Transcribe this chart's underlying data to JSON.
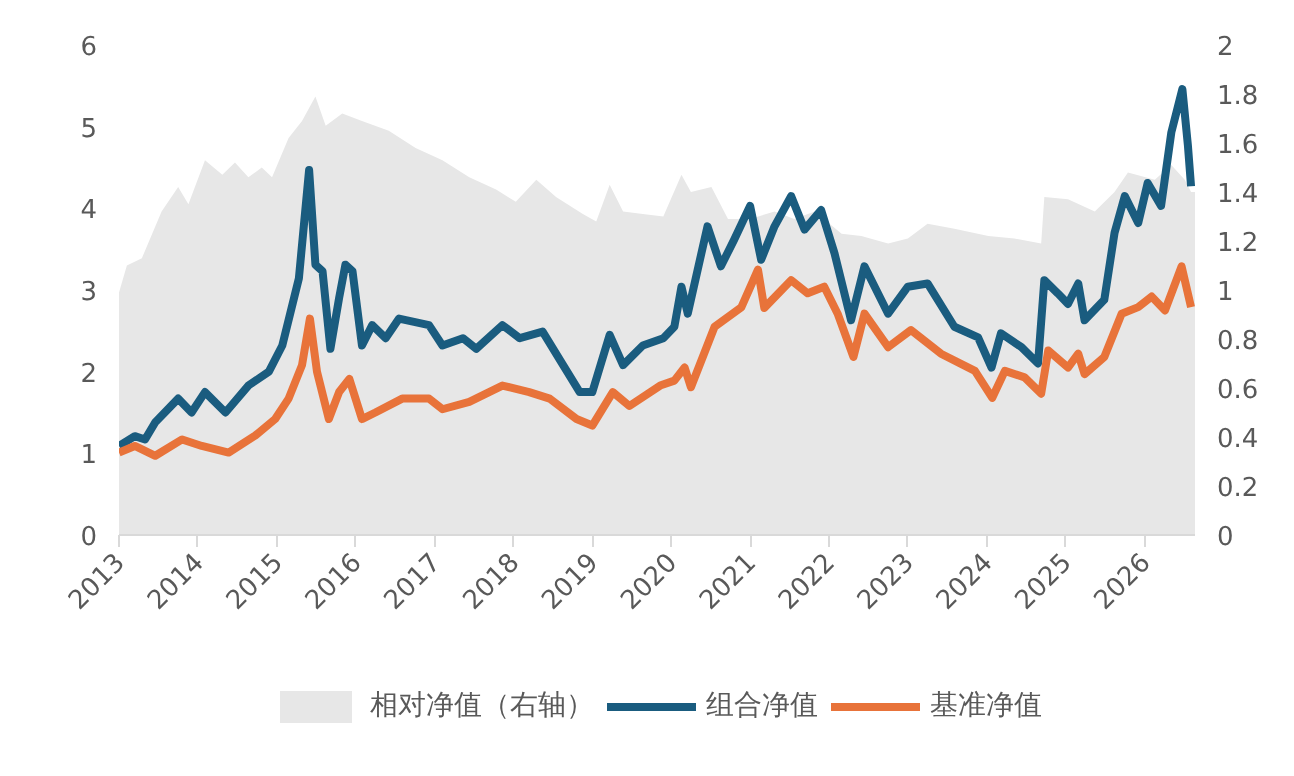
{
  "chart_data": {
    "type": "line",
    "xlim": [
      2013,
      2026.64
    ],
    "xticks": [
      2013,
      2014,
      2015,
      2016,
      2017,
      2018,
      2019,
      2020,
      2021,
      2022,
      2023,
      2024,
      2025,
      2026
    ],
    "ylim": [
      0,
      6
    ],
    "yticks": [
      0,
      1,
      2,
      3,
      4,
      5,
      6
    ],
    "y2lim": [
      0,
      2
    ],
    "y2ticks": [
      0,
      0.2,
      0.4,
      0.6,
      0.8,
      1,
      1.2,
      1.4,
      1.6,
      1.8,
      2
    ],
    "grid": false,
    "legend": "bottom",
    "series": [
      {
        "name": "相对净值（右轴）",
        "type": "area",
        "axis": "y2",
        "color": "#e7e7e7",
        "x": [
          2013.0,
          2013.1,
          2013.29,
          2013.54,
          2013.75,
          2013.88,
          2014.09,
          2014.31,
          2014.47,
          2014.64,
          2014.81,
          2014.94,
          2015.15,
          2015.32,
          2015.49,
          2015.62,
          2015.83,
          2016.08,
          2016.42,
          2016.76,
          2017.1,
          2017.44,
          2017.78,
          2018.03,
          2018.29,
          2018.54,
          2018.88,
          2019.05,
          2019.22,
          2019.39,
          2019.64,
          2019.9,
          2020.13,
          2020.25,
          2020.51,
          2020.72,
          2021.0,
          2021.31,
          2021.56,
          2021.82,
          2022.16,
          2022.41,
          2022.75,
          2023.0,
          2023.25,
          2023.59,
          2024.02,
          2024.35,
          2024.69,
          2024.73,
          2025.03,
          2025.37,
          2025.62,
          2025.79,
          2026.13,
          2026.34,
          2026.51,
          2026.59,
          2026.64
        ],
        "values": [
          0.99,
          1.1,
          1.13,
          1.32,
          1.42,
          1.35,
          1.53,
          1.47,
          1.52,
          1.46,
          1.5,
          1.46,
          1.62,
          1.69,
          1.79,
          1.67,
          1.72,
          1.69,
          1.65,
          1.58,
          1.53,
          1.46,
          1.41,
          1.36,
          1.45,
          1.38,
          1.31,
          1.28,
          1.43,
          1.32,
          1.31,
          1.3,
          1.47,
          1.4,
          1.42,
          1.29,
          1.29,
          1.32,
          1.29,
          1.32,
          1.23,
          1.22,
          1.19,
          1.21,
          1.27,
          1.25,
          1.22,
          1.21,
          1.19,
          1.38,
          1.37,
          1.32,
          1.4,
          1.48,
          1.45,
          1.51,
          1.45,
          1.4,
          1.4
        ]
      },
      {
        "name": "组合净值",
        "color": "#1a5c7f",
        "x": [
          2013.0,
          2013.2,
          2013.33,
          2013.46,
          2013.75,
          2013.92,
          2014.09,
          2014.35,
          2014.64,
          2014.9,
          2015.07,
          2015.28,
          2015.41,
          2015.49,
          2015.58,
          2015.68,
          2015.79,
          2015.87,
          2015.96,
          2016.08,
          2016.21,
          2016.38,
          2016.55,
          2016.93,
          2017.1,
          2017.36,
          2017.53,
          2017.86,
          2018.08,
          2018.37,
          2018.63,
          2018.84,
          2019.0,
          2019.22,
          2019.39,
          2019.64,
          2019.9,
          2020.04,
          2020.13,
          2020.21,
          2020.46,
          2020.63,
          2020.8,
          2021.0,
          2021.14,
          2021.31,
          2021.52,
          2021.69,
          2021.9,
          2022.07,
          2022.28,
          2022.45,
          2022.75,
          2023.0,
          2023.25,
          2023.59,
          2023.89,
          2024.06,
          2024.18,
          2024.44,
          2024.65,
          2024.73,
          2024.9,
          2025.03,
          2025.16,
          2025.24,
          2025.49,
          2025.62,
          2025.75,
          2025.92,
          2026.04,
          2026.21,
          2026.34,
          2026.48,
          2026.55,
          2026.59
        ],
        "values": [
          1.09,
          1.21,
          1.17,
          1.38,
          1.67,
          1.5,
          1.75,
          1.5,
          1.83,
          2.0,
          2.32,
          3.14,
          4.47,
          3.31,
          3.23,
          2.28,
          2.9,
          3.31,
          3.23,
          2.32,
          2.57,
          2.41,
          2.65,
          2.57,
          2.32,
          2.41,
          2.28,
          2.57,
          2.41,
          2.49,
          2.08,
          1.75,
          1.75,
          2.45,
          2.08,
          2.32,
          2.41,
          2.55,
          3.04,
          2.71,
          3.78,
          3.29,
          3.62,
          4.03,
          3.37,
          3.78,
          4.15,
          3.74,
          3.98,
          3.45,
          2.63,
          3.29,
          2.71,
          3.04,
          3.08,
          2.55,
          2.42,
          2.05,
          2.47,
          2.3,
          2.1,
          3.12,
          2.96,
          2.83,
          3.08,
          2.63,
          2.88,
          3.7,
          4.15,
          3.82,
          4.31,
          4.03,
          4.93,
          5.46,
          4.77,
          4.27
        ]
      },
      {
        "name": "基准净值",
        "color": "#e8733a",
        "x": [
          2013.0,
          2013.2,
          2013.46,
          2013.8,
          2014.05,
          2014.39,
          2014.73,
          2014.98,
          2015.15,
          2015.32,
          2015.42,
          2015.51,
          2015.66,
          2015.79,
          2015.92,
          2016.08,
          2016.25,
          2016.59,
          2016.93,
          2017.1,
          2017.44,
          2017.86,
          2018.2,
          2018.46,
          2018.8,
          2019.0,
          2019.26,
          2019.47,
          2019.86,
          2020.04,
          2020.17,
          2020.25,
          2020.55,
          2020.89,
          2021.1,
          2021.18,
          2021.52,
          2021.73,
          2021.94,
          2022.11,
          2022.31,
          2022.45,
          2022.75,
          2023.04,
          2023.42,
          2023.85,
          2024.07,
          2024.23,
          2024.48,
          2024.69,
          2024.78,
          2025.03,
          2025.16,
          2025.24,
          2025.49,
          2025.71,
          2025.92,
          2026.09,
          2026.26,
          2026.47,
          2026.59
        ],
        "values": [
          1.01,
          1.09,
          0.97,
          1.17,
          1.09,
          1.01,
          1.22,
          1.42,
          1.67,
          2.08,
          2.65,
          2.0,
          1.42,
          1.75,
          1.91,
          1.42,
          1.5,
          1.67,
          1.67,
          1.54,
          1.63,
          1.83,
          1.75,
          1.67,
          1.42,
          1.34,
          1.75,
          1.58,
          1.83,
          1.89,
          2.05,
          1.81,
          2.55,
          2.79,
          3.25,
          2.78,
          3.12,
          2.96,
          3.04,
          2.71,
          2.18,
          2.71,
          2.3,
          2.51,
          2.22,
          2.01,
          1.68,
          2.01,
          1.93,
          1.73,
          2.26,
          2.05,
          2.22,
          1.97,
          2.18,
          2.71,
          2.79,
          2.92,
          2.75,
          3.29,
          2.79
        ]
      }
    ]
  }
}
